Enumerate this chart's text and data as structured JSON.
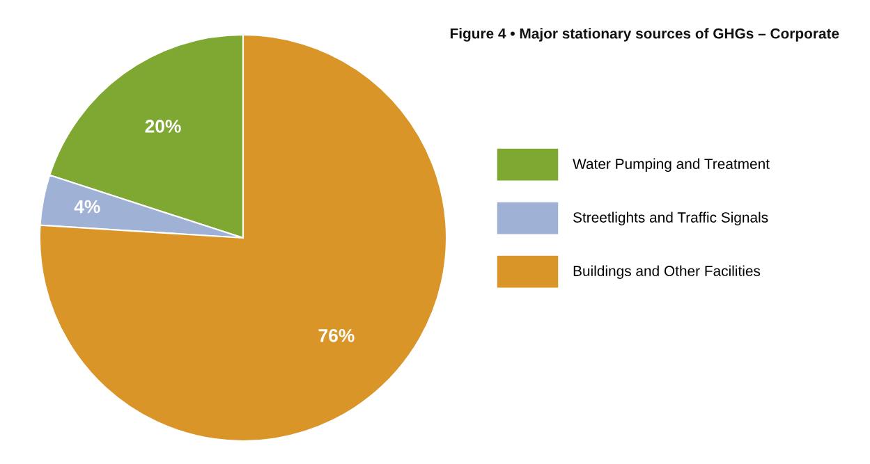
{
  "chart_data": {
    "type": "pie",
    "title": "Figure 4 • Major stationary sources of GHGs – Corporate",
    "categories": [
      "Water Pumping and Treatment",
      "Streetlights and Traffic Signals",
      "Buildings and Other Facilities"
    ],
    "values": [
      20,
      4,
      76
    ],
    "colors": [
      "#7ea832",
      "#9fb1d4",
      "#d99527"
    ],
    "value_labels": [
      "20%",
      "4%",
      "76%"
    ],
    "legend": "right"
  }
}
